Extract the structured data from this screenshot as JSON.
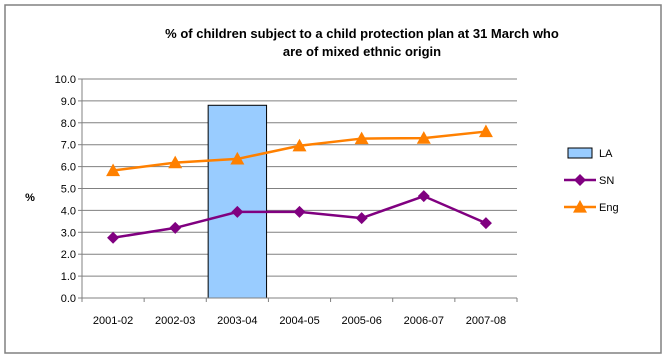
{
  "chart_data": {
    "type": "bar",
    "title_lines": [
      "% of children subject to a child protection plan at 31 March who",
      "are of mixed ethnic origin"
    ],
    "xlabel": "",
    "ylabel": "%",
    "ylim": [
      0,
      10
    ],
    "y_ticks": [
      "0.0",
      "1.0",
      "2.0",
      "3.0",
      "4.0",
      "5.0",
      "6.0",
      "7.0",
      "8.0",
      "9.0",
      "10.0"
    ],
    "grid": "horizontal",
    "legend_position": "right",
    "categories": [
      "2001-02",
      "2002-03",
      "2003-04",
      "2004-05",
      "2005-06",
      "2006-07",
      "2007-08"
    ],
    "series": [
      {
        "name": "LA",
        "kind": "bar",
        "color": "#99CCFF",
        "values": [
          null,
          null,
          8.8,
          null,
          null,
          null,
          null
        ]
      },
      {
        "name": "SN",
        "kind": "line",
        "marker": "diamond",
        "color": "#800080",
        "values": [
          2.75,
          3.2,
          3.93,
          3.93,
          3.65,
          4.65,
          3.42
        ]
      },
      {
        "name": "Eng",
        "kind": "line",
        "marker": "triangle",
        "color": "#FF8000",
        "values": [
          5.82,
          6.18,
          6.35,
          6.95,
          7.28,
          7.3,
          7.6
        ]
      }
    ]
  }
}
